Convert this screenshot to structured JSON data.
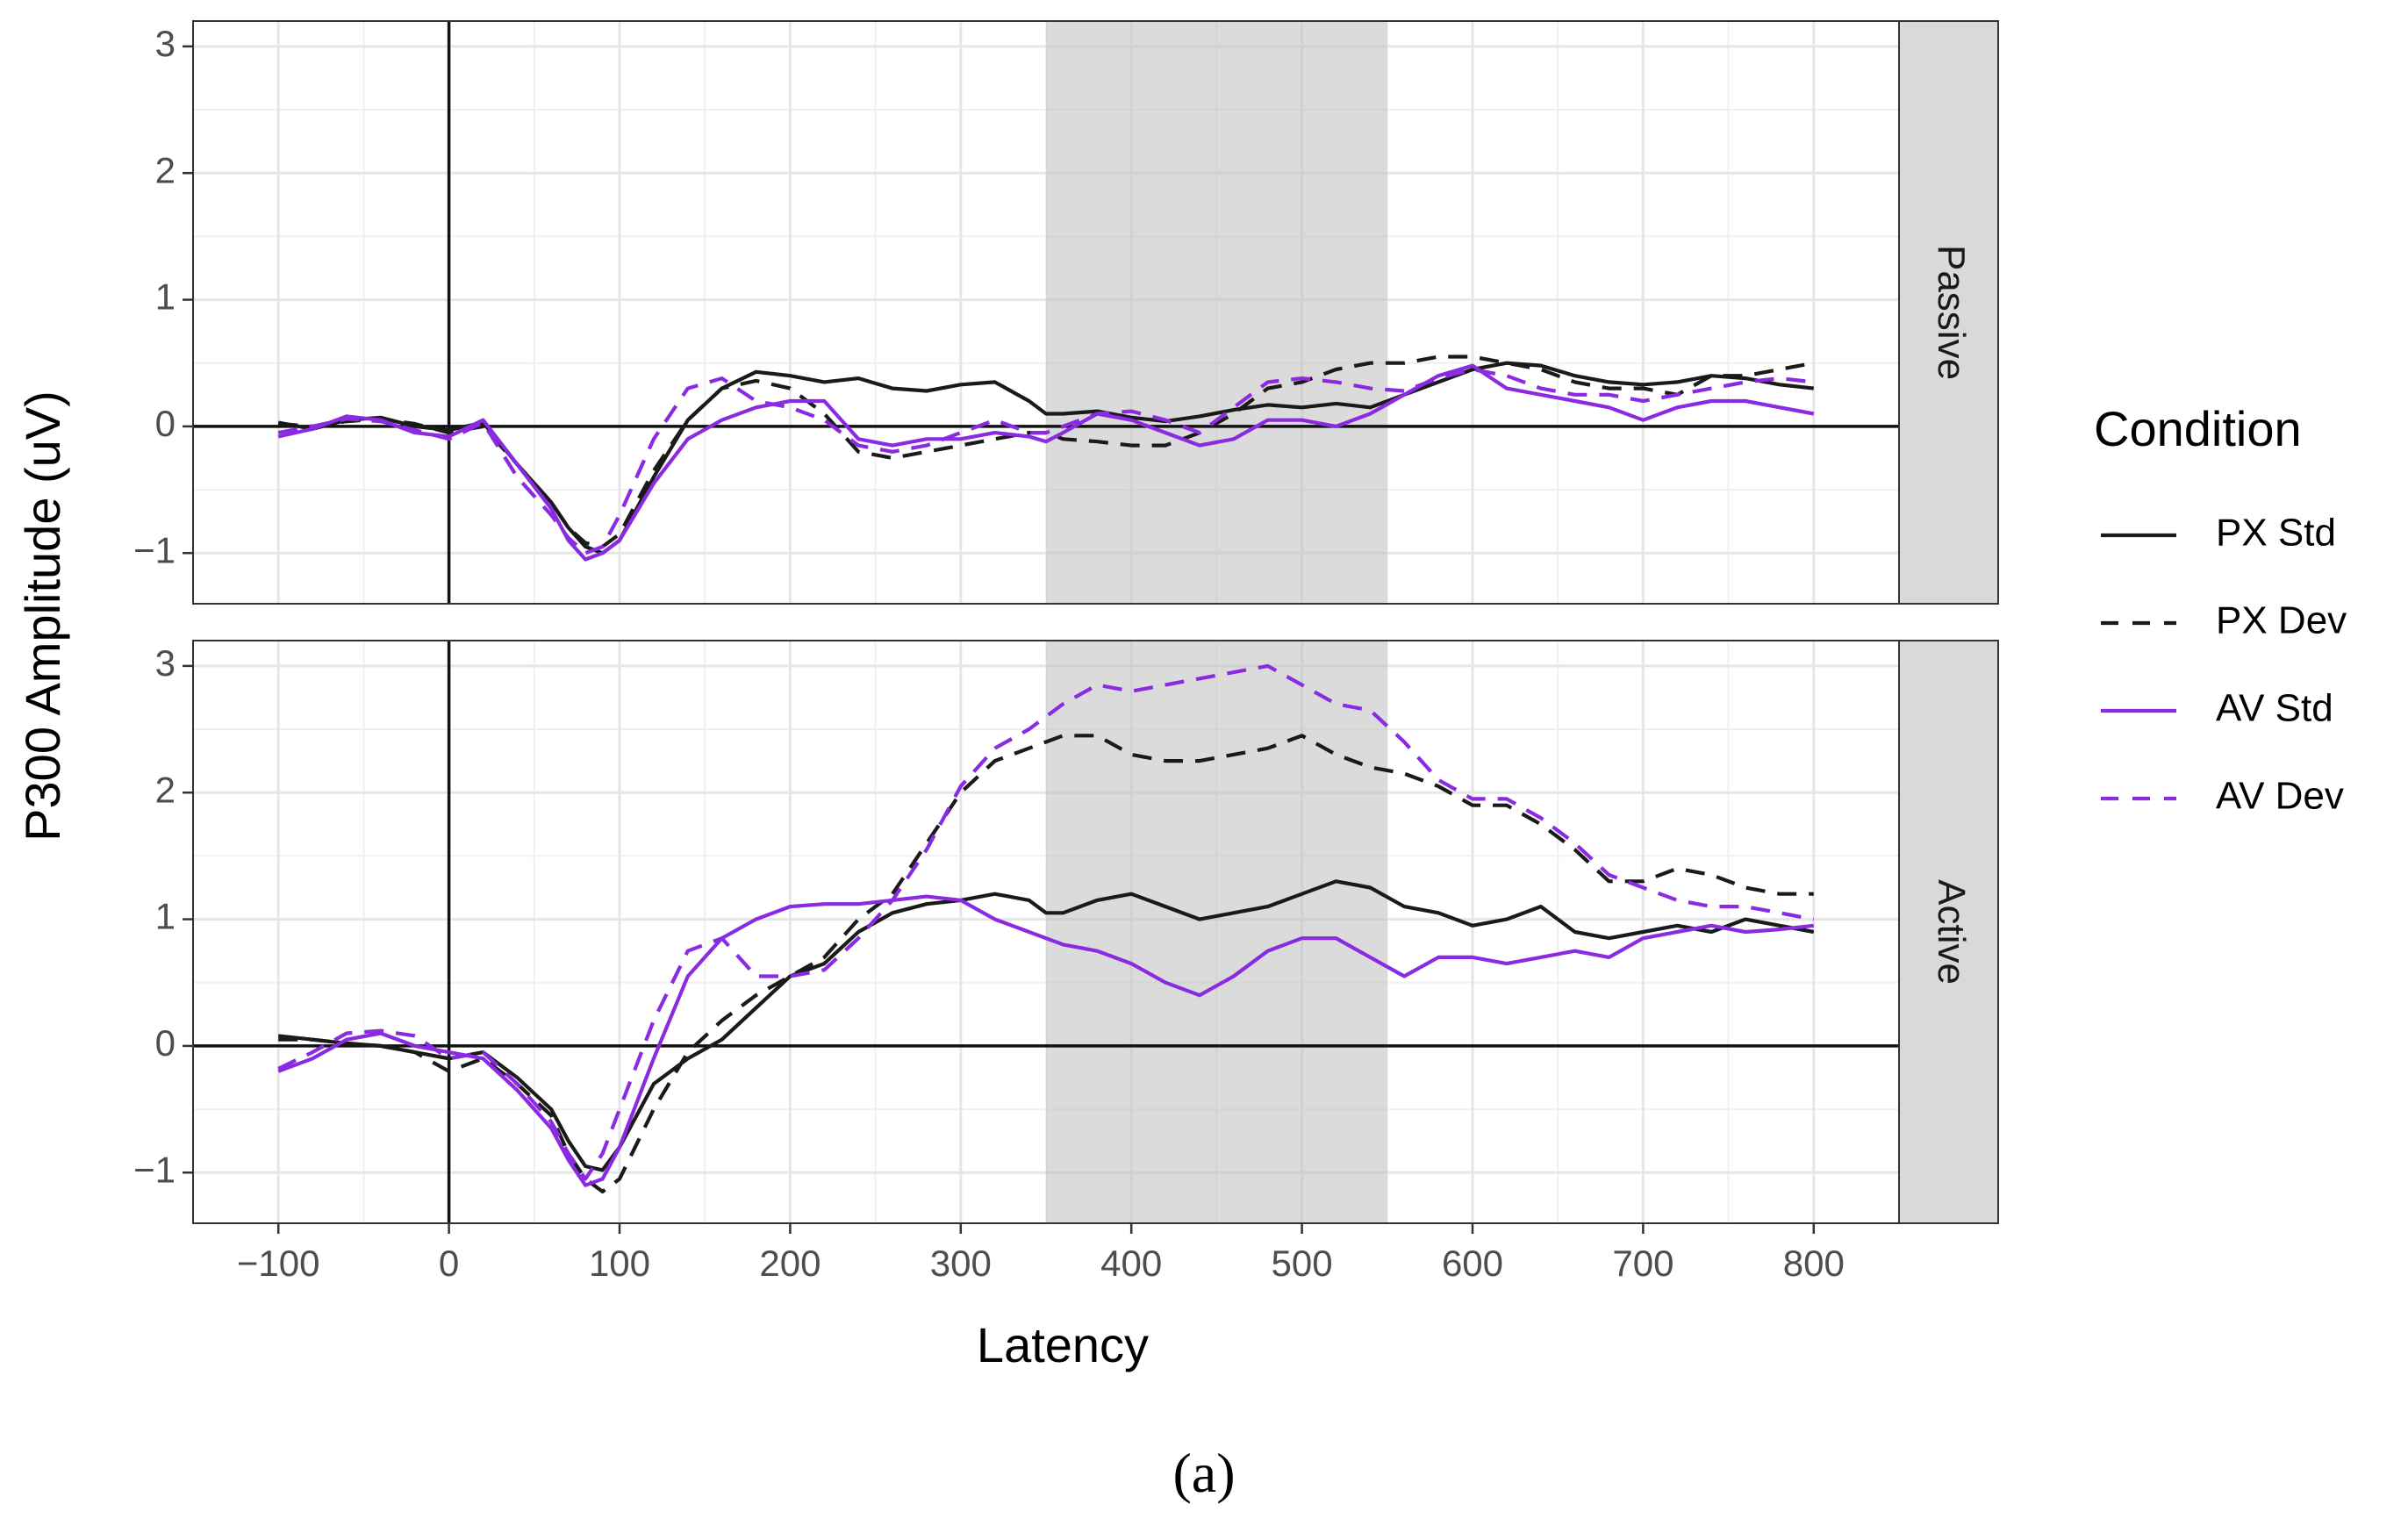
{
  "chart_data": {
    "type": "line",
    "caption": "(a)",
    "xlabel": "Latency",
    "ylabel": "P300 Amplitude (uV)",
    "xlim": [
      -150,
      850
    ],
    "x_ticks": [
      -100,
      0,
      100,
      200,
      300,
      400,
      500,
      600,
      700,
      800
    ],
    "x_tick_labels": [
      "−100",
      "0",
      "100",
      "200",
      "300",
      "400",
      "500",
      "600",
      "700",
      "800"
    ],
    "y_ticks": [
      -1,
      0,
      1,
      2,
      3
    ],
    "y_tick_labels": [
      "−1",
      "0",
      "1",
      "2",
      "3"
    ],
    "shaded_window": [
      350,
      550
    ],
    "legend": {
      "title": "Condition",
      "placement": "right",
      "items": [
        {
          "label": "PX Std",
          "color": "#1a1a1a",
          "dash": "solid"
        },
        {
          "label": "PX Dev",
          "color": "#1a1a1a",
          "dash": "dashed"
        },
        {
          "label": "AV Std",
          "color": "#8a2be2",
          "dash": "solid"
        },
        {
          "label": "AV Dev",
          "color": "#8a2be2",
          "dash": "dashed"
        }
      ]
    },
    "panels": [
      {
        "strip": "Passive",
        "ylim": [
          -1.4,
          3.2
        ],
        "series": [
          {
            "name": "PX Std",
            "x": [
              -100,
              -80,
              -60,
              -40,
              -20,
              0,
              20,
              40,
              60,
              70,
              80,
              90,
              100,
              120,
              140,
              160,
              180,
              200,
              220,
              240,
              260,
              280,
              300,
              320,
              340,
              350,
              360,
              380,
              400,
              420,
              440,
              460,
              480,
              500,
              520,
              540,
              560,
              580,
              600,
              620,
              640,
              660,
              680,
              700,
              720,
              740,
              760,
              780,
              800
            ],
            "y": [
              0.03,
              -0.02,
              0.05,
              0.07,
              0.0,
              -0.03,
              0.03,
              -0.3,
              -0.6,
              -0.8,
              -0.95,
              -1.0,
              -0.9,
              -0.4,
              0.05,
              0.3,
              0.43,
              0.4,
              0.35,
              0.38,
              0.3,
              0.28,
              0.33,
              0.35,
              0.2,
              0.1,
              0.1,
              0.12,
              0.07,
              0.04,
              0.08,
              0.13,
              0.17,
              0.15,
              0.18,
              0.15,
              0.25,
              0.35,
              0.45,
              0.5,
              0.48,
              0.4,
              0.35,
              0.33,
              0.35,
              0.4,
              0.38,
              0.33,
              0.3
            ]
          },
          {
            "name": "PX Dev",
            "x": [
              -100,
              -80,
              -60,
              -40,
              -20,
              0,
              20,
              40,
              60,
              70,
              80,
              90,
              100,
              120,
              140,
              160,
              180,
              200,
              220,
              240,
              260,
              280,
              300,
              320,
              340,
              350,
              360,
              380,
              400,
              420,
              440,
              460,
              480,
              500,
              520,
              540,
              560,
              580,
              600,
              620,
              640,
              660,
              680,
              700,
              720,
              740,
              760,
              780,
              800
            ],
            "y": [
              0.02,
              0.0,
              0.04,
              0.06,
              0.02,
              -0.05,
              0.0,
              -0.3,
              -0.6,
              -0.8,
              -0.92,
              -0.95,
              -0.85,
              -0.35,
              0.05,
              0.3,
              0.36,
              0.3,
              0.1,
              -0.2,
              -0.25,
              -0.2,
              -0.15,
              -0.1,
              -0.05,
              -0.05,
              -0.1,
              -0.12,
              -0.15,
              -0.15,
              -0.05,
              0.1,
              0.3,
              0.35,
              0.45,
              0.5,
              0.5,
              0.55,
              0.55,
              0.5,
              0.45,
              0.35,
              0.3,
              0.3,
              0.25,
              0.4,
              0.4,
              0.45,
              0.5
            ]
          },
          {
            "name": "AV Std",
            "x": [
              -100,
              -80,
              -60,
              -40,
              -20,
              0,
              20,
              40,
              60,
              70,
              80,
              90,
              100,
              120,
              140,
              160,
              180,
              200,
              220,
              240,
              260,
              280,
              300,
              320,
              340,
              350,
              360,
              380,
              400,
              420,
              440,
              460,
              480,
              500,
              520,
              540,
              560,
              580,
              600,
              620,
              640,
              660,
              680,
              700,
              720,
              740,
              760,
              780,
              800
            ],
            "y": [
              -0.08,
              -0.02,
              0.08,
              0.05,
              -0.05,
              -0.08,
              0.05,
              -0.3,
              -0.65,
              -0.9,
              -1.05,
              -1.0,
              -0.9,
              -0.45,
              -0.1,
              0.05,
              0.15,
              0.2,
              0.2,
              -0.1,
              -0.15,
              -0.1,
              -0.1,
              -0.05,
              -0.08,
              -0.12,
              -0.05,
              0.1,
              0.05,
              -0.05,
              -0.15,
              -0.1,
              0.05,
              0.05,
              0.0,
              0.1,
              0.25,
              0.4,
              0.48,
              0.3,
              0.25,
              0.2,
              0.15,
              0.05,
              0.15,
              0.2,
              0.2,
              0.15,
              0.1
            ]
          },
          {
            "name": "AV Dev",
            "x": [
              -100,
              -80,
              -60,
              -40,
              -20,
              0,
              20,
              40,
              60,
              70,
              80,
              90,
              100,
              120,
              140,
              160,
              180,
              200,
              220,
              240,
              260,
              280,
              300,
              320,
              340,
              350,
              360,
              380,
              400,
              420,
              440,
              460,
              480,
              500,
              520,
              540,
              560,
              580,
              600,
              620,
              640,
              660,
              680,
              700,
              720,
              740,
              760,
              780,
              800
            ],
            "y": [
              -0.05,
              0.0,
              0.06,
              0.04,
              -0.03,
              -0.1,
              0.03,
              -0.4,
              -0.7,
              -0.88,
              -1.0,
              -0.95,
              -0.7,
              -0.1,
              0.3,
              0.38,
              0.2,
              0.15,
              0.05,
              -0.15,
              -0.2,
              -0.15,
              -0.05,
              0.05,
              -0.05,
              -0.05,
              0.0,
              0.1,
              0.12,
              0.05,
              -0.05,
              0.15,
              0.35,
              0.38,
              0.35,
              0.3,
              0.28,
              0.38,
              0.45,
              0.4,
              0.3,
              0.25,
              0.25,
              0.2,
              0.25,
              0.3,
              0.35,
              0.38,
              0.35
            ]
          }
        ]
      },
      {
        "strip": "Active",
        "ylim": [
          -1.4,
          3.2
        ],
        "series": [
          {
            "name": "PX Std",
            "x": [
              -100,
              -80,
              -60,
              -40,
              -20,
              0,
              20,
              40,
              60,
              70,
              80,
              90,
              100,
              120,
              140,
              160,
              180,
              200,
              220,
              240,
              260,
              280,
              300,
              320,
              340,
              350,
              360,
              380,
              400,
              420,
              440,
              460,
              480,
              500,
              520,
              540,
              560,
              580,
              600,
              620,
              640,
              660,
              680,
              700,
              720,
              740,
              760,
              780,
              800
            ],
            "y": [
              0.08,
              0.05,
              0.02,
              0.0,
              -0.05,
              -0.1,
              -0.05,
              -0.25,
              -0.5,
              -0.75,
              -0.95,
              -0.98,
              -0.8,
              -0.3,
              -0.1,
              0.05,
              0.3,
              0.55,
              0.65,
              0.9,
              1.05,
              1.12,
              1.15,
              1.2,
              1.15,
              1.05,
              1.05,
              1.15,
              1.2,
              1.1,
              1.0,
              1.05,
              1.1,
              1.2,
              1.3,
              1.25,
              1.1,
              1.05,
              0.95,
              1.0,
              1.1,
              0.9,
              0.85,
              0.9,
              0.95,
              0.9,
              1.0,
              0.95,
              0.9
            ]
          },
          {
            "name": "PX Dev",
            "x": [
              -100,
              -80,
              -60,
              -40,
              -20,
              0,
              20,
              40,
              60,
              70,
              80,
              90,
              100,
              120,
              140,
              160,
              180,
              200,
              220,
              240,
              260,
              280,
              300,
              320,
              340,
              350,
              360,
              380,
              400,
              420,
              440,
              460,
              480,
              500,
              520,
              540,
              560,
              580,
              600,
              620,
              640,
              660,
              680,
              700,
              720,
              740,
              760,
              780,
              800
            ],
            "y": [
              0.05,
              0.05,
              0.02,
              0.0,
              -0.05,
              -0.2,
              -0.1,
              -0.3,
              -0.55,
              -0.85,
              -1.05,
              -1.15,
              -1.05,
              -0.5,
              -0.05,
              0.2,
              0.4,
              0.55,
              0.7,
              1.0,
              1.2,
              1.6,
              2.0,
              2.25,
              2.35,
              2.4,
              2.45,
              2.45,
              2.3,
              2.25,
              2.25,
              2.3,
              2.35,
              2.45,
              2.3,
              2.2,
              2.15,
              2.05,
              1.9,
              1.9,
              1.75,
              1.55,
              1.3,
              1.3,
              1.4,
              1.35,
              1.25,
              1.2,
              1.2
            ]
          },
          {
            "name": "AV Std",
            "x": [
              -100,
              -80,
              -60,
              -40,
              -20,
              0,
              20,
              40,
              60,
              70,
              80,
              90,
              100,
              120,
              140,
              160,
              180,
              200,
              220,
              240,
              260,
              280,
              300,
              320,
              340,
              350,
              360,
              380,
              400,
              420,
              440,
              460,
              480,
              500,
              520,
              540,
              560,
              580,
              600,
              620,
              640,
              660,
              680,
              700,
              720,
              740,
              760,
              780,
              800
            ],
            "y": [
              -0.2,
              -0.1,
              0.05,
              0.1,
              0.0,
              -0.05,
              -0.1,
              -0.35,
              -0.65,
              -0.9,
              -1.1,
              -1.05,
              -0.8,
              -0.1,
              0.55,
              0.85,
              1.0,
              1.1,
              1.12,
              1.12,
              1.15,
              1.18,
              1.15,
              1.0,
              0.9,
              0.85,
              0.8,
              0.75,
              0.65,
              0.5,
              0.4,
              0.55,
              0.75,
              0.85,
              0.85,
              0.7,
              0.55,
              0.7,
              0.7,
              0.65,
              0.7,
              0.75,
              0.7,
              0.85,
              0.9,
              0.95,
              0.9,
              0.92,
              0.95
            ]
          },
          {
            "name": "AV Dev",
            "x": [
              -100,
              -80,
              -60,
              -40,
              -20,
              0,
              20,
              40,
              60,
              70,
              80,
              90,
              100,
              120,
              140,
              160,
              180,
              200,
              220,
              240,
              260,
              280,
              300,
              320,
              340,
              350,
              360,
              380,
              400,
              420,
              440,
              460,
              480,
              500,
              520,
              540,
              560,
              580,
              600,
              620,
              640,
              660,
              680,
              700,
              720,
              740,
              760,
              780,
              800
            ],
            "y": [
              -0.18,
              -0.05,
              0.1,
              0.12,
              0.08,
              -0.1,
              -0.05,
              -0.3,
              -0.6,
              -0.85,
              -1.05,
              -0.85,
              -0.5,
              0.2,
              0.75,
              0.85,
              0.55,
              0.55,
              0.6,
              0.85,
              1.15,
              1.55,
              2.05,
              2.35,
              2.5,
              2.6,
              2.7,
              2.85,
              2.8,
              2.85,
              2.9,
              2.95,
              3.0,
              2.85,
              2.7,
              2.65,
              2.4,
              2.1,
              1.95,
              1.95,
              1.8,
              1.6,
              1.35,
              1.25,
              1.15,
              1.1,
              1.1,
              1.05,
              1.0
            ]
          }
        ]
      }
    ]
  }
}
